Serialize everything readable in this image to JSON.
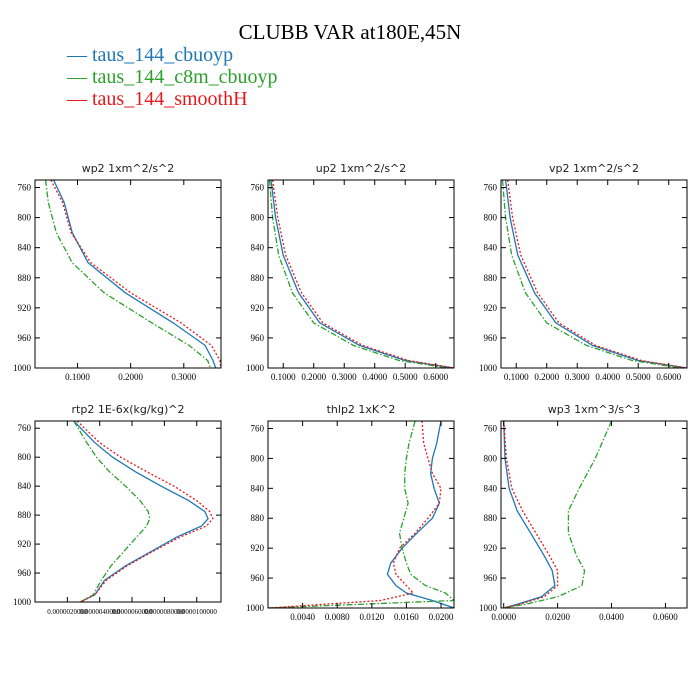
{
  "title": "CLUBB VAR at180E,45N",
  "legend": [
    {
      "label": "taus_144_cbuoyp",
      "color": "#1f77b4",
      "dash": "solid"
    },
    {
      "label": "taus_144_c8m_cbuoyp",
      "color": "#2ca02c",
      "dash": "dashdot"
    },
    {
      "label": "taus_144_smoothH",
      "color": "#e31a1c",
      "dash": "dotted"
    }
  ],
  "chart_data": [
    {
      "type": "line",
      "title": "wp2   1xm^2/s^2",
      "xlim": [
        0.02,
        0.37
      ],
      "ylim": [
        1000,
        750
      ],
      "xticks": [
        0.1,
        0.2,
        0.3
      ],
      "xticklabels": [
        "0.1000",
        "0.2000",
        "0.3000"
      ],
      "yticks": [
        760,
        800,
        840,
        880,
        920,
        960,
        1000
      ],
      "series": [
        {
          "name": "taus_144_cbuoyp",
          "y": [
            750,
            780,
            820,
            860,
            900,
            940,
            970,
            990,
            1000
          ],
          "x": [
            0.055,
            0.075,
            0.09,
            0.12,
            0.19,
            0.28,
            0.34,
            0.355,
            0.36
          ]
        },
        {
          "name": "taus_144_c8m_cbuoyp",
          "y": [
            750,
            780,
            820,
            860,
            900,
            940,
            970,
            990,
            1000
          ],
          "x": [
            0.04,
            0.045,
            0.06,
            0.09,
            0.15,
            0.24,
            0.31,
            0.345,
            0.35
          ]
        },
        {
          "name": "taus_144_smoothH",
          "y": [
            750,
            780,
            820,
            860,
            900,
            940,
            970,
            990,
            1000
          ],
          "x": [
            0.05,
            0.072,
            0.088,
            0.125,
            0.2,
            0.295,
            0.352,
            0.368,
            0.37
          ]
        }
      ]
    },
    {
      "type": "line",
      "title": "up2   1xm^2/s^2",
      "xlim": [
        0.05,
        0.66
      ],
      "ylim": [
        1000,
        750
      ],
      "xticks": [
        0.1,
        0.2,
        0.3,
        0.4,
        0.5,
        0.6
      ],
      "xticklabels": [
        "0.1000",
        "0.2000",
        "0.3000",
        "0.4000",
        "0.5000",
        "0.6000"
      ],
      "yticks": [
        760,
        800,
        840,
        880,
        920,
        960,
        1000
      ],
      "series": [
        {
          "name": "taus_144_cbuoyp",
          "y": [
            750,
            800,
            850,
            900,
            940,
            970,
            990,
            1000
          ],
          "x": [
            0.06,
            0.075,
            0.1,
            0.15,
            0.22,
            0.35,
            0.5,
            0.66
          ]
        },
        {
          "name": "taus_144_c8m_cbuoyp",
          "y": [
            750,
            800,
            850,
            900,
            940,
            970,
            990,
            1000
          ],
          "x": [
            0.055,
            0.065,
            0.085,
            0.13,
            0.2,
            0.33,
            0.48,
            0.64
          ]
        },
        {
          "name": "taus_144_smoothH",
          "y": [
            750,
            800,
            850,
            900,
            940,
            970,
            990,
            1000
          ],
          "x": [
            0.065,
            0.082,
            0.108,
            0.16,
            0.23,
            0.36,
            0.51,
            0.66
          ]
        }
      ]
    },
    {
      "type": "line",
      "title": "vp2   1xm^2/s^2",
      "xlim": [
        0.05,
        0.66
      ],
      "ylim": [
        1000,
        750
      ],
      "xticks": [
        0.1,
        0.2,
        0.3,
        0.4,
        0.5,
        0.6
      ],
      "xticklabels": [
        "0.1000",
        "0.2000",
        "0.3000",
        "0.4000",
        "0.5000",
        "0.6000"
      ],
      "yticks": [
        760,
        800,
        840,
        880,
        920,
        960,
        1000
      ],
      "series": [
        {
          "name": "taus_144_cbuoyp",
          "y": [
            750,
            800,
            850,
            900,
            940,
            970,
            990,
            1000
          ],
          "x": [
            0.065,
            0.08,
            0.105,
            0.16,
            0.23,
            0.35,
            0.5,
            0.66
          ]
        },
        {
          "name": "taus_144_c8m_cbuoyp",
          "y": [
            750,
            800,
            850,
            900,
            940,
            970,
            990,
            1000
          ],
          "x": [
            0.055,
            0.065,
            0.085,
            0.13,
            0.2,
            0.33,
            0.48,
            0.64
          ]
        },
        {
          "name": "taus_144_smoothH",
          "y": [
            750,
            800,
            850,
            900,
            940,
            970,
            990,
            1000
          ],
          "x": [
            0.072,
            0.088,
            0.115,
            0.17,
            0.24,
            0.36,
            0.51,
            0.66
          ]
        }
      ]
    },
    {
      "type": "line",
      "title": "rtp2   1E-6x(kg/kg)^2",
      "xlim": [
        0.0,
        1.15e-05
      ],
      "ylim": [
        1000,
        750
      ],
      "xticks": [
        2e-06,
        4e-06,
        6e-06,
        8e-06,
        1e-05
      ],
      "xticklabels": [
        "0.0000020000",
        "0.0000040000",
        "0.0000060000",
        "0.0000080000",
        "0.0000100000"
      ],
      "yticks": [
        760,
        800,
        840,
        880,
        920,
        960,
        1000
      ],
      "series": [
        {
          "name": "taus_144_cbuoyp",
          "y": [
            750,
            780,
            800,
            820,
            840,
            860,
            875,
            885,
            895,
            910,
            930,
            950,
            970,
            990,
            1000
          ],
          "x": [
            2.4e-06,
            3.7e-06,
            4.8e-06,
            6.2e-06,
            7.8e-06,
            9.5e-06,
            1.05e-05,
            1.07e-05,
            1.03e-05,
            8.8e-06,
            7.2e-06,
            5.6e-06,
            4.3e-06,
            3.7e-06,
            2.8e-06
          ]
        },
        {
          "name": "taus_144_c8m_cbuoyp",
          "y": [
            750,
            780,
            800,
            820,
            840,
            860,
            875,
            885,
            895,
            910,
            930,
            950,
            970,
            990,
            1000
          ],
          "x": [
            2.4e-06,
            3.2e-06,
            3.8e-06,
            4.6e-06,
            5.6e-06,
            6.5e-06,
            7e-06,
            7.1e-06,
            6.9e-06,
            6.3e-06,
            5.5e-06,
            4.7e-06,
            4.1e-06,
            3.6e-06,
            2.8e-06
          ]
        },
        {
          "name": "taus_144_smoothH",
          "y": [
            750,
            780,
            800,
            820,
            840,
            860,
            875,
            885,
            895,
            910,
            930,
            950,
            970,
            990,
            1000
          ],
          "x": [
            2.6e-06,
            4e-06,
            5.3e-06,
            6.9e-06,
            8.6e-06,
            1e-05,
            1.08e-05,
            1.1e-05,
            1.06e-05,
            9e-06,
            7.3e-06,
            5.7e-06,
            4.4e-06,
            3.7e-06,
            2.8e-06
          ]
        }
      ]
    },
    {
      "type": "line",
      "title": "thlp2   1xK^2",
      "xlim": [
        0.0,
        0.0215
      ],
      "ylim": [
        1000,
        750
      ],
      "xticks": [
        0.004,
        0.008,
        0.012,
        0.016,
        0.02
      ],
      "xticklabels": [
        "0.0040",
        "0.0080",
        "0.0120",
        "0.0160",
        "0.0200"
      ],
      "yticks": [
        760,
        800,
        840,
        880,
        920,
        960,
        1000
      ],
      "series": [
        {
          "name": "taus_144_cbuoyp",
          "y": [
            750,
            780,
            800,
            820,
            840,
            860,
            880,
            900,
            920,
            940,
            955,
            970,
            980,
            990,
            1000
          ],
          "x": [
            0.02,
            0.0195,
            0.019,
            0.0188,
            0.0192,
            0.0198,
            0.019,
            0.0172,
            0.0155,
            0.0142,
            0.0138,
            0.0148,
            0.016,
            0.019,
            0.0215
          ]
        },
        {
          "name": "taus_144_c8m_cbuoyp",
          "y": [
            750,
            780,
            800,
            820,
            840,
            860,
            880,
            900,
            920,
            940,
            955,
            970,
            980,
            990,
            1000
          ],
          "x": [
            0.017,
            0.0163,
            0.016,
            0.0158,
            0.0158,
            0.0162,
            0.0157,
            0.0152,
            0.0155,
            0.016,
            0.0165,
            0.0182,
            0.0205,
            0.0215,
            0.0
          ]
        },
        {
          "name": "taus_144_smoothH",
          "y": [
            750,
            780,
            800,
            820,
            840,
            860,
            880,
            900,
            920,
            940,
            955,
            970,
            980,
            990,
            1000
          ],
          "x": [
            0.0178,
            0.018,
            0.0185,
            0.019,
            0.02,
            0.0198,
            0.0185,
            0.017,
            0.0152,
            0.0145,
            0.0148,
            0.016,
            0.0168,
            0.013,
            0.0
          ]
        }
      ]
    },
    {
      "type": "line",
      "title": "wp3   1xm^3/s^3",
      "xlim": [
        -0.001,
        0.068
      ],
      "ylim": [
        1000,
        750
      ],
      "xticks": [
        0.0,
        0.02,
        0.04,
        0.06
      ],
      "xticklabels": [
        "0.0000",
        "0.0200",
        "0.0400",
        "0.0600"
      ],
      "yticks": [
        760,
        800,
        840,
        880,
        920,
        960,
        1000
      ],
      "series": [
        {
          "name": "taus_144_cbuoyp",
          "y": [
            750,
            800,
            840,
            870,
            900,
            930,
            950,
            970,
            985,
            995,
            1000
          ],
          "x": [
            0.0,
            0.0005,
            0.002,
            0.005,
            0.01,
            0.015,
            0.018,
            0.019,
            0.014,
            0.005,
            0.0
          ]
        },
        {
          "name": "taus_144_c8m_cbuoyp",
          "y": [
            750,
            800,
            840,
            870,
            900,
            930,
            950,
            970,
            985,
            995,
            1000
          ],
          "x": [
            0.04,
            0.034,
            0.028,
            0.024,
            0.024,
            0.027,
            0.03,
            0.029,
            0.02,
            0.008,
            0.0
          ]
        },
        {
          "name": "taus_144_smoothH",
          "y": [
            750,
            800,
            840,
            870,
            900,
            930,
            950,
            970,
            985,
            995,
            1000
          ],
          "x": [
            0.0,
            0.001,
            0.003,
            0.007,
            0.012,
            0.017,
            0.02,
            0.02,
            0.015,
            0.006,
            0.0
          ]
        }
      ]
    }
  ]
}
